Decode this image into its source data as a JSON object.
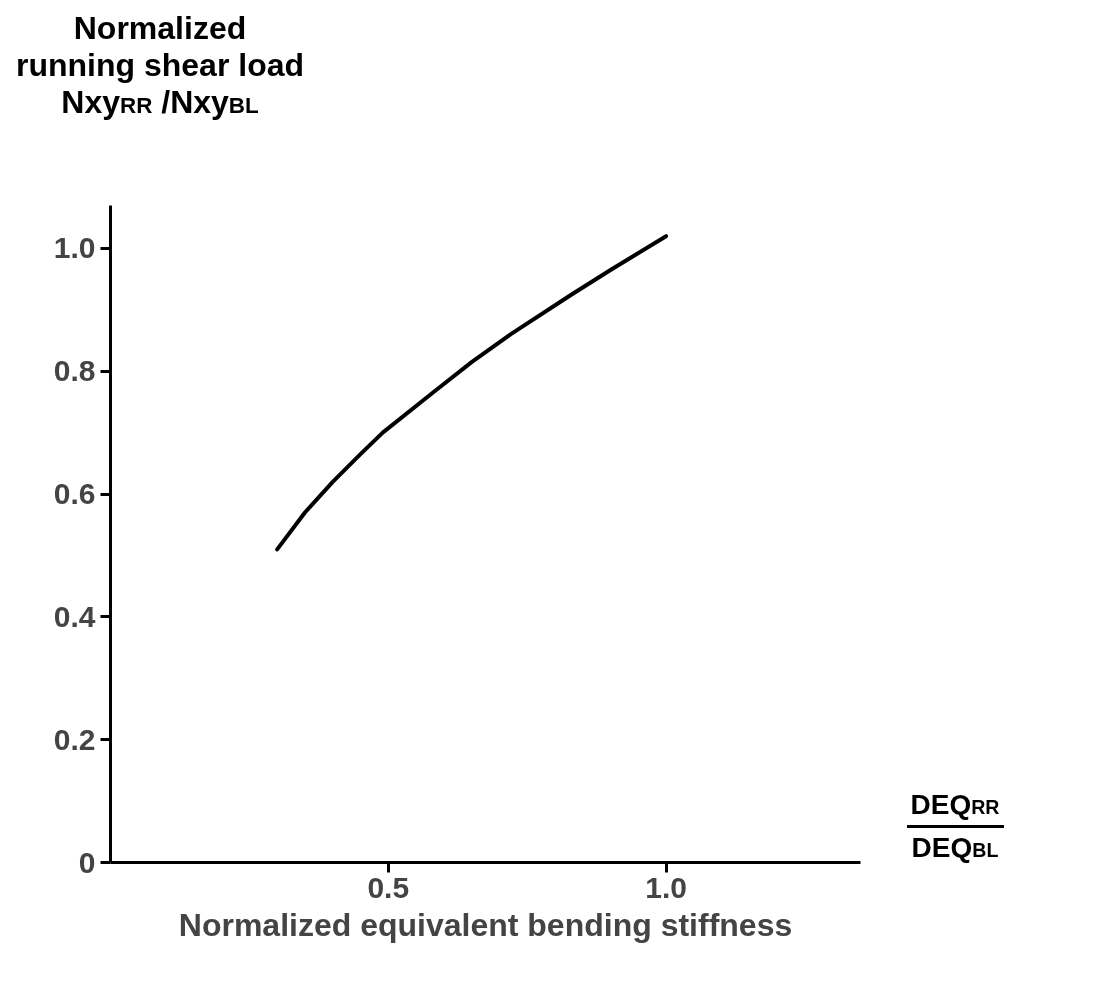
{
  "chart_data": {
    "type": "line",
    "xlabel": "Normalized equivalent bending stiffness",
    "ylabel": "Normalized running shear load Nxy$_{RR}$ /Nxy$_{BL}$",
    "annotations": [
      "DEQ$_{RR}$",
      "DEQ$_{BL}$"
    ],
    "x": [
      0.3,
      0.35,
      0.4,
      0.45,
      0.49,
      0.58,
      0.65,
      0.72,
      0.83,
      0.9,
      1.0
    ],
    "series": [
      {
        "color": "#000000",
        "values": [
          0.51,
          0.57,
          0.62,
          0.665,
          0.7,
          0.765,
          0.815,
          0.86,
          0.925,
          0.965,
          1.02
        ]
      }
    ],
    "xlim": [
      0,
      1.35
    ],
    "ylim": [
      0,
      1.07
    ],
    "xticks": [
      0.5,
      {
        "value": 1.0,
        "label": "1.0"
      }
    ],
    "yticks": [
      0,
      0.2,
      0.4,
      0.6,
      0.8,
      {
        "value": 1.0,
        "label": "1.0"
      }
    ],
    "grid": false,
    "marker": "none",
    "line_style": "solid"
  }
}
